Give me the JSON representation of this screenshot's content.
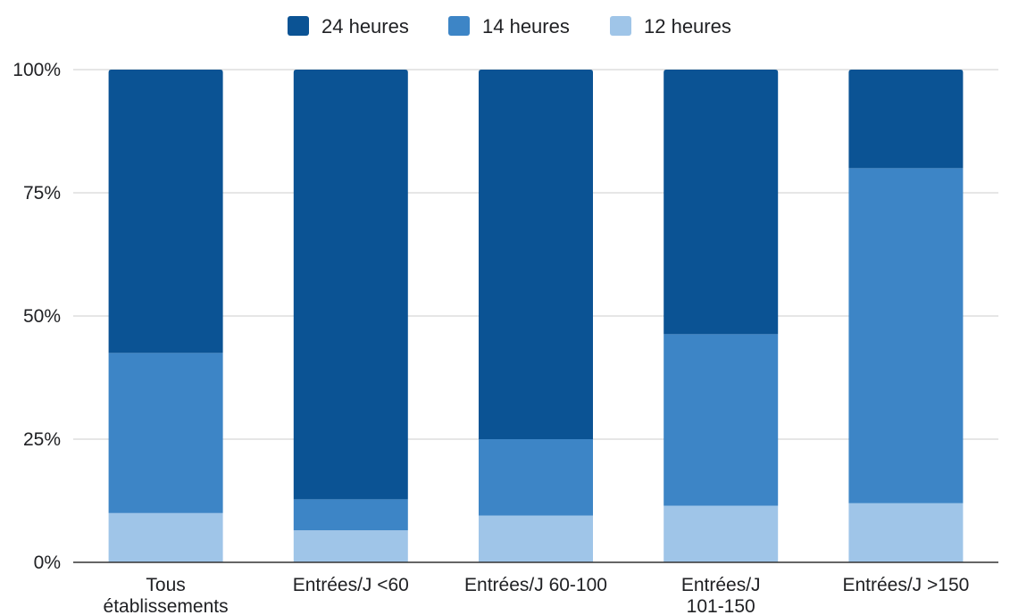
{
  "chart_data": {
    "type": "bar",
    "stacked": true,
    "normalized": true,
    "categories": [
      [
        "Tous",
        "établissements"
      ],
      [
        "Entrées/J <60"
      ],
      [
        "Entrées/J 60-100"
      ],
      [
        "Entrées/J",
        "101-150"
      ],
      [
        "Entrées/J >150"
      ]
    ],
    "series": [
      {
        "name": "12 heures",
        "color": "#9fc5e8",
        "values": [
          10,
          6.5,
          9.5,
          11.5,
          12
        ]
      },
      {
        "name": "14 heures",
        "color": "#3d85c6",
        "values": [
          32.5,
          6.3,
          15.5,
          34.8,
          68
        ]
      },
      {
        "name": "24 heures",
        "color": "#0b5394",
        "values": [
          57.5,
          87.2,
          75,
          53.7,
          20
        ]
      }
    ],
    "legend_order": [
      "24 heures",
      "14 heures",
      "12 heures"
    ],
    "legend_position": "top",
    "ylim": [
      0,
      100
    ],
    "yticks": [
      "0%",
      "25%",
      "50%",
      "75%",
      "100%"
    ],
    "grid": true,
    "title": "",
    "xlabel": "",
    "ylabel": ""
  }
}
